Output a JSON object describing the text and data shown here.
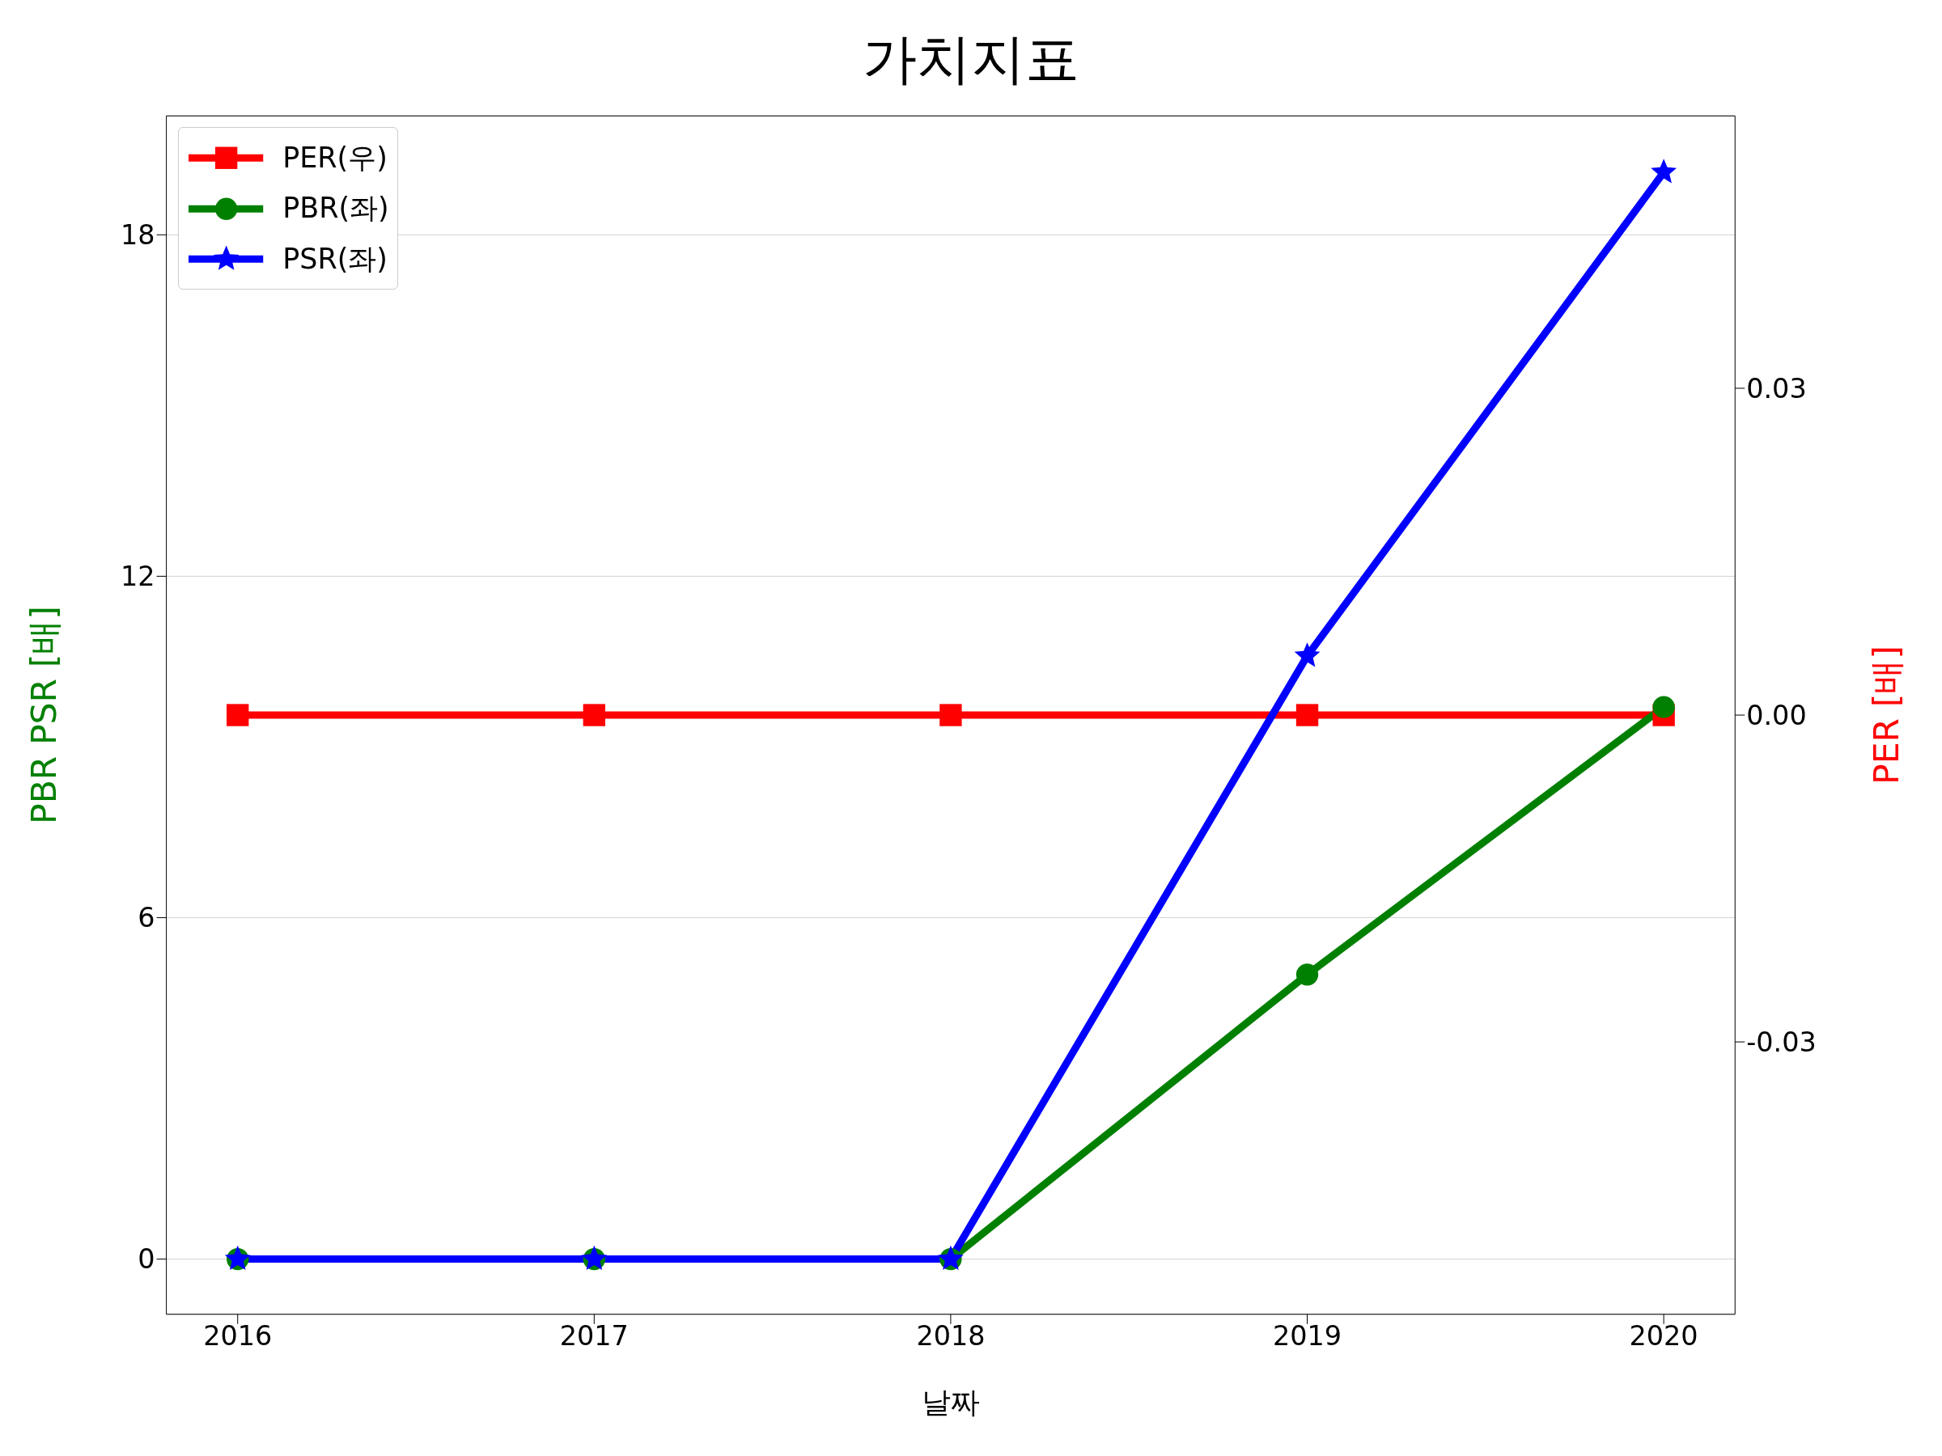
{
  "chart_data": {
    "type": "line",
    "title": "가치지표",
    "xlabel": "날짜",
    "ylabel": "PBR PSR [배]",
    "y2label": "PER [배]",
    "x": [
      2016,
      2017,
      2018,
      2019,
      2020
    ],
    "xlim": [
      2015.8,
      2020.2
    ],
    "xticks": [
      2016,
      2017,
      2018,
      2019,
      2020
    ],
    "ylim": [
      -0.97,
      20.09
    ],
    "yticks": [
      0,
      6,
      12,
      18
    ],
    "y2lim": [
      -0.055,
      0.055
    ],
    "y2ticks": [
      -0.03,
      {
        "value": 0,
        "label": "0.00"
      },
      0.03
    ],
    "grid": "y",
    "legend": "top left",
    "line_style": "solid",
    "series": [
      {
        "name": "PER(우)",
        "color": "#ff0000",
        "axis": "y2",
        "marker": "square",
        "values": [
          0,
          0,
          0,
          0,
          0
        ]
      },
      {
        "name": "PBR(좌)",
        "color": "#008000",
        "marker": "circle",
        "values": [
          0,
          0,
          0,
          5.0,
          9.7
        ]
      },
      {
        "name": "PSR(좌)",
        "color": "#0000ff",
        "marker": "star",
        "values": [
          0,
          0,
          0,
          10.6,
          19.1
        ]
      }
    ]
  }
}
